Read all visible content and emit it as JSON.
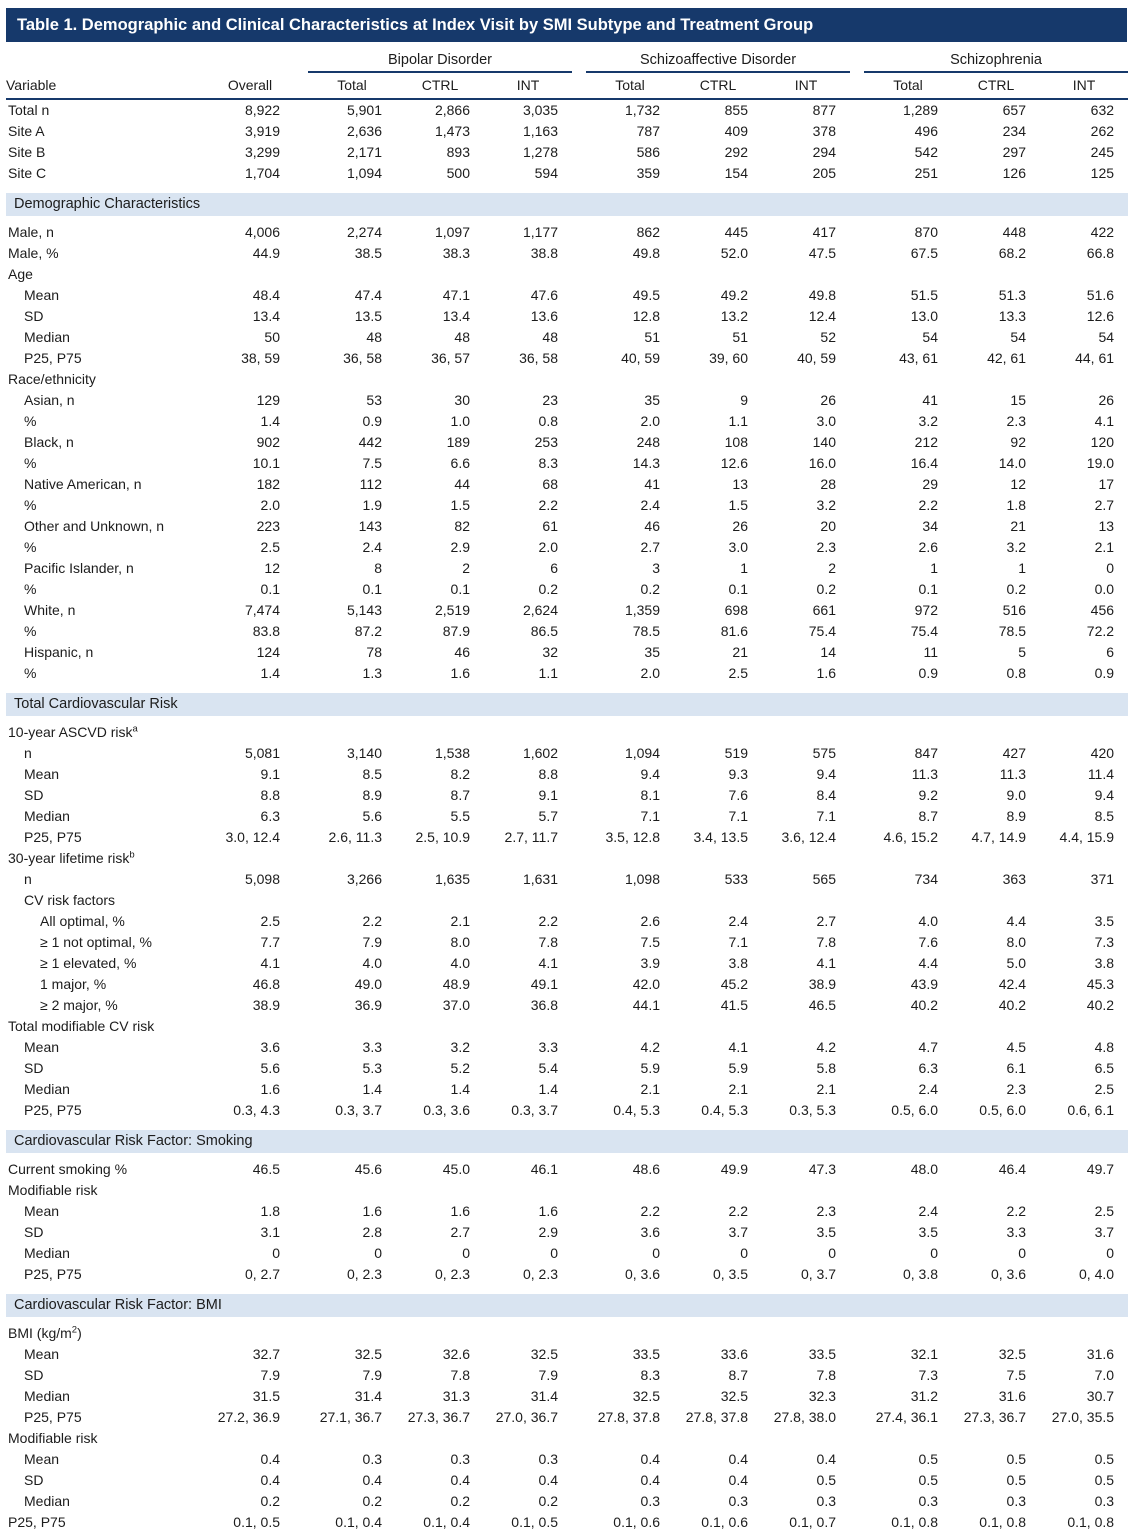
{
  "title": "Table 1. Demographic and Clinical Characteristics at Index Visit by SMI Subtype and Treatment Group",
  "colors": {
    "navy": "#16396b",
    "band": "#d9e4f1",
    "text": "#1c1c1c",
    "title_text": "#ffffff"
  },
  "table": {
    "variable_header": "Variable",
    "overall_header": "Overall",
    "groups": [
      {
        "label": "Bipolar Disorder",
        "subcolumns": [
          "Total",
          "CTRL",
          "INT"
        ]
      },
      {
        "label": "Schizoaffective Disorder",
        "subcolumns": [
          "Total",
          "CTRL",
          "INT"
        ]
      },
      {
        "label": "Schizophrenia",
        "subcolumns": [
          "Total",
          "CTRL",
          "INT"
        ]
      }
    ],
    "rows": [
      {
        "t": "data",
        "label": "Total n",
        "indent": 0,
        "values": [
          "8,922",
          "5,901",
          "2,866",
          "3,035",
          "1,732",
          "855",
          "877",
          "1,289",
          "657",
          "632"
        ]
      },
      {
        "t": "data",
        "label": "Site A",
        "indent": 0,
        "values": [
          "3,919",
          "2,636",
          "1,473",
          "1,163",
          "787",
          "409",
          "378",
          "496",
          "234",
          "262"
        ]
      },
      {
        "t": "data",
        "label": "Site B",
        "indent": 0,
        "values": [
          "3,299",
          "2,171",
          "893",
          "1,278",
          "586",
          "292",
          "294",
          "542",
          "297",
          "245"
        ]
      },
      {
        "t": "data",
        "label": "Site C",
        "indent": 0,
        "values": [
          "1,704",
          "1,094",
          "500",
          "594",
          "359",
          "154",
          "205",
          "251",
          "126",
          "125"
        ]
      },
      {
        "t": "section",
        "label": "Demographic Characteristics"
      },
      {
        "t": "data",
        "label": "Male, n",
        "indent": 0,
        "values": [
          "4,006",
          "2,274",
          "1,097",
          "1,177",
          "862",
          "445",
          "417",
          "870",
          "448",
          "422"
        ]
      },
      {
        "t": "data",
        "label": "Male, %",
        "indent": 0,
        "values": [
          "44.9",
          "38.5",
          "38.3",
          "38.8",
          "49.8",
          "52.0",
          "47.5",
          "67.5",
          "68.2",
          "66.8"
        ]
      },
      {
        "t": "label",
        "label": "Age",
        "indent": 0
      },
      {
        "t": "data",
        "label": "Mean",
        "indent": 1,
        "values": [
          "48.4",
          "47.4",
          "47.1",
          "47.6",
          "49.5",
          "49.2",
          "49.8",
          "51.5",
          "51.3",
          "51.6"
        ]
      },
      {
        "t": "data",
        "label": "SD",
        "indent": 1,
        "values": [
          "13.4",
          "13.5",
          "13.4",
          "13.6",
          "12.8",
          "13.2",
          "12.4",
          "13.0",
          "13.3",
          "12.6"
        ]
      },
      {
        "t": "data",
        "label": "Median",
        "indent": 1,
        "values": [
          "50",
          "48",
          "48",
          "48",
          "51",
          "51",
          "52",
          "54",
          "54",
          "54"
        ]
      },
      {
        "t": "data",
        "label": "P25, P75",
        "indent": 1,
        "values": [
          "38, 59",
          "36, 58",
          "36, 57",
          "36, 58",
          "40, 59",
          "39, 60",
          "40, 59",
          "43, 61",
          "42, 61",
          "44, 61"
        ]
      },
      {
        "t": "label",
        "label": "Race/ethnicity",
        "indent": 0
      },
      {
        "t": "data",
        "label": "Asian, n",
        "indent": 1,
        "values": [
          "129",
          "53",
          "30",
          "23",
          "35",
          "9",
          "26",
          "41",
          "15",
          "26"
        ]
      },
      {
        "t": "data",
        "label": "%",
        "indent": 1,
        "values": [
          "1.4",
          "0.9",
          "1.0",
          "0.8",
          "2.0",
          "1.1",
          "3.0",
          "3.2",
          "2.3",
          "4.1"
        ]
      },
      {
        "t": "data",
        "label": "Black, n",
        "indent": 1,
        "values": [
          "902",
          "442",
          "189",
          "253",
          "248",
          "108",
          "140",
          "212",
          "92",
          "120"
        ]
      },
      {
        "t": "data",
        "label": "%",
        "indent": 1,
        "values": [
          "10.1",
          "7.5",
          "6.6",
          "8.3",
          "14.3",
          "12.6",
          "16.0",
          "16.4",
          "14.0",
          "19.0"
        ]
      },
      {
        "t": "data",
        "label": "Native American, n",
        "indent": 1,
        "values": [
          "182",
          "112",
          "44",
          "68",
          "41",
          "13",
          "28",
          "29",
          "12",
          "17"
        ]
      },
      {
        "t": "data",
        "label": "%",
        "indent": 1,
        "values": [
          "2.0",
          "1.9",
          "1.5",
          "2.2",
          "2.4",
          "1.5",
          "3.2",
          "2.2",
          "1.8",
          "2.7"
        ]
      },
      {
        "t": "data",
        "label": "Other and Unknown, n",
        "indent": 1,
        "values": [
          "223",
          "143",
          "82",
          "61",
          "46",
          "26",
          "20",
          "34",
          "21",
          "13"
        ]
      },
      {
        "t": "data",
        "label": "%",
        "indent": 1,
        "values": [
          "2.5",
          "2.4",
          "2.9",
          "2.0",
          "2.7",
          "3.0",
          "2.3",
          "2.6",
          "3.2",
          "2.1"
        ]
      },
      {
        "t": "data",
        "label": "Pacific Islander, n",
        "indent": 1,
        "values": [
          "12",
          "8",
          "2",
          "6",
          "3",
          "1",
          "2",
          "1",
          "1",
          "0"
        ]
      },
      {
        "t": "data",
        "label": "%",
        "indent": 1,
        "values": [
          "0.1",
          "0.1",
          "0.1",
          "0.2",
          "0.2",
          "0.1",
          "0.2",
          "0.1",
          "0.2",
          "0.0"
        ]
      },
      {
        "t": "data",
        "label": "White, n",
        "indent": 1,
        "values": [
          "7,474",
          "5,143",
          "2,519",
          "2,624",
          "1,359",
          "698",
          "661",
          "972",
          "516",
          "456"
        ]
      },
      {
        "t": "data",
        "label": "%",
        "indent": 1,
        "values": [
          "83.8",
          "87.2",
          "87.9",
          "86.5",
          "78.5",
          "81.6",
          "75.4",
          "75.4",
          "78.5",
          "72.2"
        ]
      },
      {
        "t": "data",
        "label": "Hispanic, n",
        "indent": 1,
        "values": [
          "124",
          "78",
          "46",
          "32",
          "35",
          "21",
          "14",
          "11",
          "5",
          "6"
        ]
      },
      {
        "t": "data",
        "label": "%",
        "indent": 1,
        "values": [
          "1.4",
          "1.3",
          "1.6",
          "1.1",
          "2.0",
          "2.5",
          "1.6",
          "0.9",
          "0.8",
          "0.9"
        ]
      },
      {
        "t": "section",
        "label": "Total Cardiovascular Risk"
      },
      {
        "t": "label",
        "label": "10-year ASCVD risk",
        "sup": "a",
        "indent": 0
      },
      {
        "t": "data",
        "label": "n",
        "indent": 1,
        "values": [
          "5,081",
          "3,140",
          "1,538",
          "1,602",
          "1,094",
          "519",
          "575",
          "847",
          "427",
          "420"
        ]
      },
      {
        "t": "data",
        "label": "Mean",
        "indent": 1,
        "values": [
          "9.1",
          "8.5",
          "8.2",
          "8.8",
          "9.4",
          "9.3",
          "9.4",
          "11.3",
          "11.3",
          "11.4"
        ]
      },
      {
        "t": "data",
        "label": "SD",
        "indent": 1,
        "values": [
          "8.8",
          "8.9",
          "8.7",
          "9.1",
          "8.1",
          "7.6",
          "8.4",
          "9.2",
          "9.0",
          "9.4"
        ]
      },
      {
        "t": "data",
        "label": "Median",
        "indent": 1,
        "values": [
          "6.3",
          "5.6",
          "5.5",
          "5.7",
          "7.1",
          "7.1",
          "7.1",
          "8.7",
          "8.9",
          "8.5"
        ]
      },
      {
        "t": "data",
        "label": "P25, P75",
        "indent": 1,
        "values": [
          "3.0, 12.4",
          "2.6, 11.3",
          "2.5, 10.9",
          "2.7, 11.7",
          "3.5, 12.8",
          "3.4, 13.5",
          "3.6, 12.4",
          "4.6, 15.2",
          "4.7, 14.9",
          "4.4, 15.9"
        ]
      },
      {
        "t": "label",
        "label": "30-year lifetime risk",
        "sup": "b",
        "indent": 0
      },
      {
        "t": "data",
        "label": "n",
        "indent": 1,
        "values": [
          "5,098",
          "3,266",
          "1,635",
          "1,631",
          "1,098",
          "533",
          "565",
          "734",
          "363",
          "371"
        ]
      },
      {
        "t": "label",
        "label": "CV risk factors",
        "indent": 1
      },
      {
        "t": "data",
        "label": "All optimal, %",
        "indent": 2,
        "values": [
          "2.5",
          "2.2",
          "2.1",
          "2.2",
          "2.6",
          "2.4",
          "2.7",
          "4.0",
          "4.4",
          "3.5"
        ]
      },
      {
        "t": "data",
        "label": "≥ 1 not optimal, %",
        "indent": 2,
        "values": [
          "7.7",
          "7.9",
          "8.0",
          "7.8",
          "7.5",
          "7.1",
          "7.8",
          "7.6",
          "8.0",
          "7.3"
        ]
      },
      {
        "t": "data",
        "label": "≥ 1 elevated, %",
        "indent": 2,
        "values": [
          "4.1",
          "4.0",
          "4.0",
          "4.1",
          "3.9",
          "3.8",
          "4.1",
          "4.4",
          "5.0",
          "3.8"
        ]
      },
      {
        "t": "data",
        "label": "1 major, %",
        "indent": 2,
        "values": [
          "46.8",
          "49.0",
          "48.9",
          "49.1",
          "42.0",
          "45.2",
          "38.9",
          "43.9",
          "42.4",
          "45.3"
        ]
      },
      {
        "t": "data",
        "label": "≥ 2 major, %",
        "indent": 2,
        "values": [
          "38.9",
          "36.9",
          "37.0",
          "36.8",
          "44.1",
          "41.5",
          "46.5",
          "40.2",
          "40.2",
          "40.2"
        ]
      },
      {
        "t": "label",
        "label": "Total modifiable CV risk",
        "indent": 0
      },
      {
        "t": "data",
        "label": "Mean",
        "indent": 1,
        "values": [
          "3.6",
          "3.3",
          "3.2",
          "3.3",
          "4.2",
          "4.1",
          "4.2",
          "4.7",
          "4.5",
          "4.8"
        ]
      },
      {
        "t": "data",
        "label": "SD",
        "indent": 1,
        "values": [
          "5.6",
          "5.3",
          "5.2",
          "5.4",
          "5.9",
          "5.9",
          "5.8",
          "6.3",
          "6.1",
          "6.5"
        ]
      },
      {
        "t": "data",
        "label": "Median",
        "indent": 1,
        "values": [
          "1.6",
          "1.4",
          "1.4",
          "1.4",
          "2.1",
          "2.1",
          "2.1",
          "2.4",
          "2.3",
          "2.5"
        ]
      },
      {
        "t": "data",
        "label": "P25, P75",
        "indent": 1,
        "values": [
          "0.3, 4.3",
          "0.3, 3.7",
          "0.3, 3.6",
          "0.3, 3.7",
          "0.4, 5.3",
          "0.4, 5.3",
          "0.3, 5.3",
          "0.5, 6.0",
          "0.5, 6.0",
          "0.6, 6.1"
        ]
      },
      {
        "t": "section",
        "label": "Cardiovascular Risk Factor: Smoking"
      },
      {
        "t": "data",
        "label": "Current smoking %",
        "indent": 0,
        "values": [
          "46.5",
          "45.6",
          "45.0",
          "46.1",
          "48.6",
          "49.9",
          "47.3",
          "48.0",
          "46.4",
          "49.7"
        ]
      },
      {
        "t": "label",
        "label": "Modifiable risk",
        "indent": 0
      },
      {
        "t": "data",
        "label": "Mean",
        "indent": 1,
        "values": [
          "1.8",
          "1.6",
          "1.6",
          "1.6",
          "2.2",
          "2.2",
          "2.3",
          "2.4",
          "2.2",
          "2.5"
        ]
      },
      {
        "t": "data",
        "label": "SD",
        "indent": 1,
        "values": [
          "3.1",
          "2.8",
          "2.7",
          "2.9",
          "3.6",
          "3.7",
          "3.5",
          "3.5",
          "3.3",
          "3.7"
        ]
      },
      {
        "t": "data",
        "label": "Median",
        "indent": 1,
        "values": [
          "0",
          "0",
          "0",
          "0",
          "0",
          "0",
          "0",
          "0",
          "0",
          "0"
        ]
      },
      {
        "t": "data",
        "label": "P25, P75",
        "indent": 1,
        "values": [
          "0, 2.7",
          "0, 2.3",
          "0, 2.3",
          "0, 2.3",
          "0, 3.6",
          "0, 3.5",
          "0, 3.7",
          "0, 3.8",
          "0, 3.6",
          "0, 4.0"
        ]
      },
      {
        "t": "section",
        "label": "Cardiovascular Risk Factor: BMI"
      },
      {
        "t": "label",
        "label": "BMI (kg/m",
        "sup": "2",
        "after": ")",
        "indent": 0
      },
      {
        "t": "data",
        "label": "Mean",
        "indent": 1,
        "values": [
          "32.7",
          "32.5",
          "32.6",
          "32.5",
          "33.5",
          "33.6",
          "33.5",
          "32.1",
          "32.5",
          "31.6"
        ]
      },
      {
        "t": "data",
        "label": "SD",
        "indent": 1,
        "values": [
          "7.9",
          "7.9",
          "7.8",
          "7.9",
          "8.3",
          "8.7",
          "7.8",
          "7.3",
          "7.5",
          "7.0"
        ]
      },
      {
        "t": "data",
        "label": "Median",
        "indent": 1,
        "values": [
          "31.5",
          "31.4",
          "31.3",
          "31.4",
          "32.5",
          "32.5",
          "32.3",
          "31.2",
          "31.6",
          "30.7"
        ]
      },
      {
        "t": "data",
        "label": "P25, P75",
        "indent": 1,
        "values": [
          "27.2, 36.9",
          "27.1, 36.7",
          "27.3, 36.7",
          "27.0, 36.7",
          "27.8, 37.8",
          "27.8, 37.8",
          "27.8, 38.0",
          "27.4, 36.1",
          "27.3, 36.7",
          "27.0, 35.5"
        ]
      },
      {
        "t": "label",
        "label": "Modifiable risk",
        "indent": 0
      },
      {
        "t": "data",
        "label": "Mean",
        "indent": 1,
        "values": [
          "0.4",
          "0.3",
          "0.3",
          "0.3",
          "0.4",
          "0.4",
          "0.4",
          "0.5",
          "0.5",
          "0.5"
        ]
      },
      {
        "t": "data",
        "label": "SD",
        "indent": 1,
        "values": [
          "0.4",
          "0.4",
          "0.4",
          "0.4",
          "0.4",
          "0.4",
          "0.5",
          "0.5",
          "0.5",
          "0.5"
        ]
      },
      {
        "t": "data",
        "label": "Median",
        "indent": 1,
        "values": [
          "0.2",
          "0.2",
          "0.2",
          "0.2",
          "0.3",
          "0.3",
          "0.3",
          "0.3",
          "0.3",
          "0.3"
        ]
      },
      {
        "t": "data",
        "label": "P25, P75",
        "indent": 0,
        "values": [
          "0.1, 0.5",
          "0.1, 0.4",
          "0.1, 0.4",
          "0.1, 0.5",
          "0.1, 0.6",
          "0.1, 0.6",
          "0.1, 0.7",
          "0.1, 0.8",
          "0.1, 0.8",
          "0.1, 0.8"
        ]
      }
    ]
  }
}
